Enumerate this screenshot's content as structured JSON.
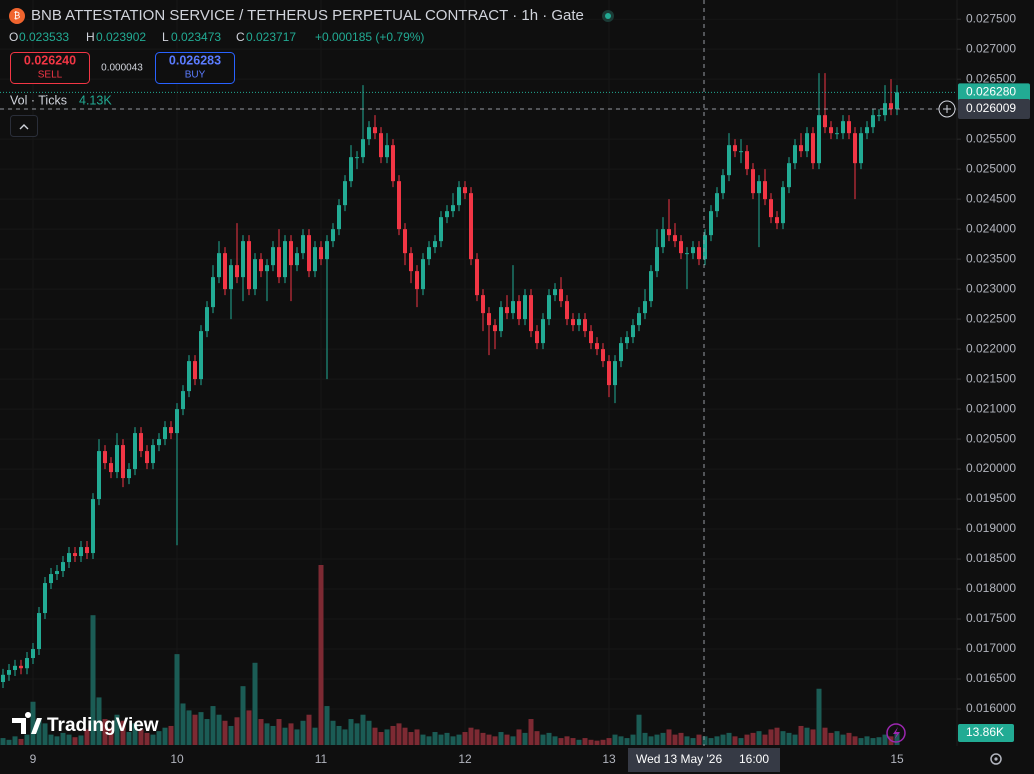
{
  "chart_data": {
    "type": "candlestick",
    "title": "BNB ATTESTATION SERVICE / TETHERUS PERPETUAL CONTRACT · 1h · Gate",
    "legend": {
      "o_key": "O",
      "o": "0.023533",
      "h_key": "H",
      "h": "0.023902",
      "l_key": "L",
      "l": "0.023473",
      "c_key": "C",
      "c": "0.023717",
      "change": "+0.000185 (+0.79%)"
    },
    "sell": {
      "price": "0.026240",
      "label": "SELL"
    },
    "spread": "0.000043",
    "buy": {
      "price": "0.026283",
      "label": "BUY"
    },
    "indicator": {
      "name": "Vol · Ticks",
      "value": "4.13K"
    },
    "watermark": "TradingView",
    "colors": {
      "up": "#22ab94",
      "down": "#f23645",
      "vol_up": "#1b5c55",
      "vol_down": "#7d2a33"
    },
    "categories": [
      null,
      null,
      null,
      null,
      null,
      "9",
      null,
      null,
      null,
      null,
      null,
      null,
      null,
      null,
      null,
      null,
      null,
      null,
      null,
      null,
      null,
      null,
      null,
      null,
      null,
      null,
      null,
      null,
      null,
      "10",
      null,
      null,
      null,
      null,
      null,
      null,
      null,
      null,
      null,
      null,
      null,
      null,
      null,
      null,
      null,
      null,
      null,
      null,
      null,
      null,
      null,
      null,
      null,
      "11",
      null,
      null,
      null,
      null,
      null,
      null,
      null,
      null,
      null,
      null,
      null,
      null,
      null,
      null,
      null,
      null,
      null,
      null,
      null,
      null,
      null,
      null,
      null,
      "12",
      null,
      null,
      null,
      null,
      null,
      null,
      null,
      null,
      null,
      null,
      null,
      null,
      null,
      null,
      null,
      null,
      null,
      null,
      null,
      null,
      null,
      null,
      null,
      "13",
      null,
      null,
      null,
      null,
      null,
      null,
      null,
      null,
      null,
      null,
      null,
      null,
      null,
      null,
      null,
      null,
      null,
      null,
      null,
      null,
      null,
      null,
      null,
      null,
      null,
      null,
      null,
      null,
      null,
      null,
      null,
      null,
      null,
      null,
      null,
      null,
      null,
      null,
      null,
      null,
      null,
      null,
      null,
      null,
      null,
      null,
      null,
      "15"
    ],
    "open": [
      0.01645,
      0.01657,
      0.01665,
      0.01672,
      0.01668,
      0.01685,
      0.017,
      0.0176,
      0.0181,
      0.01825,
      0.0183,
      0.01845,
      0.0186,
      0.01855,
      0.0187,
      0.0186,
      0.0195,
      0.0203,
      0.0201,
      0.01995,
      0.0204,
      0.01985,
      0.02,
      0.0206,
      0.0203,
      0.0201,
      0.0204,
      0.0205,
      0.0207,
      0.0206,
      0.021,
      0.0213,
      0.0218,
      0.0215,
      0.0223,
      0.0227,
      0.0232,
      0.0236,
      0.023,
      0.0234,
      0.0232,
      0.0238,
      0.023,
      0.0235,
      0.0233,
      0.0234,
      0.0237,
      0.0232,
      0.0238,
      0.0234,
      0.0236,
      0.0239,
      0.0233,
      0.0237,
      0.0235,
      0.0238,
      0.024,
      0.0244,
      0.0248,
      0.0252,
      0.0252,
      0.0255,
      0.0257,
      0.0256,
      0.0252,
      0.0254,
      0.0248,
      0.024,
      0.0236,
      0.0233,
      0.023,
      0.0235,
      0.0237,
      0.0238,
      0.0242,
      0.0243,
      0.0244,
      0.0247,
      0.0246,
      0.0235,
      0.0229,
      0.0226,
      0.0224,
      0.0223,
      0.0227,
      0.0226,
      0.0228,
      0.0225,
      0.0229,
      0.0223,
      0.0221,
      0.0225,
      0.0229,
      0.023,
      0.0228,
      0.0225,
      0.0224,
      0.0225,
      0.0223,
      0.0221,
      0.022,
      0.0218,
      0.0214,
      0.0218,
      0.0221,
      0.0222,
      0.0224,
      0.0226,
      0.0228,
      0.0233,
      0.0237,
      0.024,
      0.0239,
      0.0238,
      0.0236,
      0.0236,
      0.0237,
      0.0235,
      0.0239,
      0.0243,
      0.0246,
      0.0249,
      0.0254,
      0.0253,
      0.0253,
      0.025,
      0.0246,
      0.0248,
      0.0245,
      0.0242,
      0.0241,
      0.0247,
      0.0251,
      0.0254,
      0.0253,
      0.0256,
      0.0251,
      0.0259,
      0.0257,
      0.0256,
      0.0256,
      0.0258,
      0.0256,
      0.0251,
      0.0256,
      0.0257,
      0.0259,
      0.0259,
      0.0261,
      0.026
    ],
    "high": [
      0.01667,
      0.01675,
      0.01682,
      0.01682,
      0.01695,
      0.0171,
      0.0177,
      0.0182,
      0.01835,
      0.0184,
      0.01855,
      0.0187,
      0.0187,
      0.0188,
      0.0188,
      0.0196,
      0.0205,
      0.0204,
      0.0202,
      0.0206,
      0.0205,
      0.0201,
      0.0207,
      0.0207,
      0.0204,
      0.0205,
      0.0206,
      0.0208,
      0.0208,
      0.0211,
      0.0214,
      0.0219,
      0.0219,
      0.0224,
      0.0228,
      0.0234,
      0.0238,
      0.0237,
      0.0235,
      0.0241,
      0.0239,
      0.0239,
      0.0236,
      0.0236,
      0.0235,
      0.0238,
      0.024,
      0.0239,
      0.0239,
      0.0237,
      0.024,
      0.024,
      0.0238,
      0.0238,
      0.0239,
      0.0241,
      0.0245,
      0.0249,
      0.0254,
      0.0253,
      0.0264,
      0.0258,
      0.0259,
      0.0257,
      0.0256,
      0.0255,
      0.0249,
      0.0241,
      0.0237,
      0.0234,
      0.0236,
      0.0238,
      0.0239,
      0.0243,
      0.0244,
      0.0246,
      0.0248,
      0.0248,
      0.0247,
      0.0236,
      0.023,
      0.0227,
      0.0225,
      0.0228,
      0.0229,
      0.0234,
      0.0229,
      0.023,
      0.023,
      0.0224,
      0.0226,
      0.023,
      0.0231,
      0.0232,
      0.0229,
      0.0226,
      0.0226,
      0.0226,
      0.0224,
      0.0222,
      0.0221,
      0.0219,
      0.0219,
      0.0222,
      0.0223,
      0.0225,
      0.0227,
      0.023,
      0.0234,
      0.024,
      0.0242,
      0.0245,
      0.0241,
      0.0239,
      0.0237,
      0.0238,
      0.0238,
      0.024,
      0.0244,
      0.0247,
      0.025,
      0.0256,
      0.0255,
      0.0255,
      0.0254,
      0.0251,
      0.0249,
      0.025,
      0.0246,
      0.0243,
      0.0248,
      0.0252,
      0.0255,
      0.0256,
      0.0257,
      0.0257,
      0.0266,
      0.0266,
      0.0258,
      0.0257,
      0.0259,
      0.0259,
      0.0257,
      0.0257,
      0.0258,
      0.026,
      0.026,
      0.0264,
      0.0265,
      0.0264
    ],
    "low": [
      0.01635,
      0.01647,
      0.01655,
      0.01658,
      0.01658,
      0.01675,
      0.0169,
      0.0175,
      0.018,
      0.01815,
      0.0182,
      0.01835,
      0.01845,
      0.01845,
      0.0185,
      0.0185,
      0.0194,
      0.02,
      0.01985,
      0.01985,
      0.0197,
      0.01975,
      0.0199,
      0.0202,
      0.02,
      0.02,
      0.0203,
      0.0204,
      0.0205,
      0.01873,
      0.0209,
      0.0212,
      0.0214,
      0.0214,
      0.0222,
      0.0226,
      0.0231,
      0.0229,
      0.0225,
      0.0231,
      0.0228,
      0.0229,
      0.0229,
      0.0232,
      0.0228,
      0.0233,
      0.0231,
      0.0231,
      0.0228,
      0.0233,
      0.0235,
      0.0232,
      0.0232,
      0.0234,
      0.0215,
      0.0237,
      0.0239,
      0.0243,
      0.0247,
      0.025,
      0.0251,
      0.0254,
      0.0255,
      0.0251,
      0.0251,
      0.0247,
      0.0239,
      0.0234,
      0.0231,
      0.0227,
      0.0229,
      0.0234,
      0.0236,
      0.0237,
      0.0241,
      0.0242,
      0.0243,
      0.0245,
      0.0234,
      0.0228,
      0.0223,
      0.0219,
      0.022,
      0.0222,
      0.0225,
      0.0225,
      0.0224,
      0.0224,
      0.0222,
      0.022,
      0.022,
      0.0224,
      0.0228,
      0.0227,
      0.0224,
      0.0223,
      0.0223,
      0.0222,
      0.022,
      0.0219,
      0.0217,
      0.0212,
      0.0211,
      0.0217,
      0.022,
      0.0221,
      0.0223,
      0.0225,
      0.0227,
      0.0232,
      0.0236,
      0.0238,
      0.0237,
      0.0235,
      0.023,
      0.0235,
      0.0234,
      0.0234,
      0.0238,
      0.0242,
      0.0245,
      0.0248,
      0.0252,
      0.0251,
      0.0249,
      0.0245,
      0.0237,
      0.0244,
      0.0241,
      0.024,
      0.024,
      0.0246,
      0.025,
      0.0252,
      0.0252,
      0.025,
      0.025,
      0.0256,
      0.0255,
      0.0255,
      0.0255,
      0.0255,
      0.0245,
      0.025,
      0.0255,
      0.0256,
      0.0258,
      0.0258,
      0.0259,
      0.0259
    ],
    "close": [
      0.01657,
      0.01665,
      0.01672,
      0.01668,
      0.01685,
      0.017,
      0.0176,
      0.0181,
      0.01825,
      0.0183,
      0.01845,
      0.0186,
      0.01855,
      0.0187,
      0.0186,
      0.0195,
      0.0203,
      0.0201,
      0.01995,
      0.0204,
      0.01985,
      0.02,
      0.0206,
      0.0203,
      0.0201,
      0.0204,
      0.0205,
      0.0207,
      0.0206,
      0.021,
      0.0213,
      0.0218,
      0.0215,
      0.0223,
      0.0227,
      0.0232,
      0.0236,
      0.023,
      0.0234,
      0.0232,
      0.0238,
      0.023,
      0.0235,
      0.0233,
      0.0234,
      0.0237,
      0.0232,
      0.0238,
      0.0234,
      0.0236,
      0.0239,
      0.0233,
      0.0237,
      0.0235,
      0.0238,
      0.024,
      0.0244,
      0.0248,
      0.0252,
      0.0252,
      0.0255,
      0.0257,
      0.0256,
      0.0252,
      0.0254,
      0.0248,
      0.024,
      0.0236,
      0.0233,
      0.023,
      0.0235,
      0.0237,
      0.0238,
      0.0242,
      0.0243,
      0.0244,
      0.0247,
      0.0246,
      0.0235,
      0.0229,
      0.0226,
      0.0224,
      0.0223,
      0.0227,
      0.0226,
      0.0228,
      0.0225,
      0.0229,
      0.0223,
      0.0221,
      0.0225,
      0.0229,
      0.023,
      0.0228,
      0.0225,
      0.0224,
      0.0225,
      0.0223,
      0.0221,
      0.022,
      0.0218,
      0.0214,
      0.0218,
      0.0221,
      0.0222,
      0.0224,
      0.0226,
      0.0228,
      0.0233,
      0.0237,
      0.024,
      0.0239,
      0.0238,
      0.0236,
      0.0236,
      0.0237,
      0.0235,
      0.0239,
      0.0243,
      0.0246,
      0.0249,
      0.0254,
      0.0253,
      0.0253,
      0.025,
      0.0246,
      0.0248,
      0.0245,
      0.0242,
      0.0241,
      0.0247,
      0.0251,
      0.0254,
      0.0253,
      0.0256,
      0.0251,
      0.0259,
      0.0257,
      0.0256,
      0.0256,
      0.0258,
      0.0256,
      0.0251,
      0.0256,
      0.0257,
      0.0259,
      0.0259,
      0.0261,
      0.026,
      0.02628
    ],
    "volume": [
      8,
      6,
      10,
      7,
      12,
      50,
      30,
      25,
      12,
      10,
      14,
      12,
      9,
      11,
      18,
      150,
      55,
      30,
      20,
      35,
      28,
      15,
      25,
      18,
      14,
      12,
      16,
      20,
      22,
      105,
      48,
      40,
      35,
      38,
      30,
      45,
      35,
      28,
      22,
      32,
      68,
      40,
      95,
      30,
      25,
      22,
      30,
      20,
      25,
      18,
      28,
      35,
      20,
      208,
      45,
      28,
      22,
      18,
      30,
      25,
      35,
      28,
      20,
      15,
      18,
      22,
      25,
      20,
      15,
      18,
      12,
      10,
      15,
      12,
      14,
      10,
      12,
      15,
      20,
      18,
      14,
      12,
      10,
      15,
      12,
      10,
      18,
      14,
      30,
      16,
      12,
      14,
      10,
      8,
      10,
      8,
      6,
      8,
      6,
      5,
      6,
      8,
      12,
      10,
      8,
      12,
      35,
      14,
      10,
      12,
      14,
      18,
      12,
      14,
      10,
      8,
      12,
      10,
      8,
      10,
      12,
      14,
      10,
      8,
      12,
      14,
      16,
      12,
      18,
      20,
      16,
      14,
      12,
      22,
      20,
      18,
      65,
      20,
      14,
      16,
      12,
      14,
      10,
      8,
      10,
      8,
      9,
      12,
      10,
      13.86
    ],
    "last_volume_label": "13.86K",
    "last_price_label": "0.026280",
    "ylim": [
      0.0154,
      0.02782
    ],
    "yticks": [
      {
        "value": 0.016,
        "label": "0.016000"
      },
      {
        "value": 0.0165,
        "label": "0.016500"
      },
      {
        "value": 0.017,
        "label": "0.017000"
      },
      {
        "value": 0.0175,
        "label": "0.017500"
      },
      {
        "value": 0.018,
        "label": "0.018000"
      },
      {
        "value": 0.0185,
        "label": "0.018500"
      },
      {
        "value": 0.019,
        "label": "0.019000"
      },
      {
        "value": 0.0195,
        "label": "0.019500"
      },
      {
        "value": 0.02,
        "label": "0.020000"
      },
      {
        "value": 0.0205,
        "label": "0.020500"
      },
      {
        "value": 0.021,
        "label": "0.021000"
      },
      {
        "value": 0.0215,
        "label": "0.021500"
      },
      {
        "value": 0.022,
        "label": "0.022000"
      },
      {
        "value": 0.0225,
        "label": "0.022500"
      },
      {
        "value": 0.023,
        "label": "0.023000"
      },
      {
        "value": 0.0235,
        "label": "0.023500"
      },
      {
        "value": 0.024,
        "label": "0.024000"
      },
      {
        "value": 0.0245,
        "label": "0.024500"
      },
      {
        "value": 0.025,
        "label": "0.025000"
      },
      {
        "value": 0.0255,
        "label": "0.025500"
      },
      {
        "value": 0.026,
        "label": "0.026000"
      },
      {
        "value": 0.0265,
        "label": "0.026500"
      },
      {
        "value": 0.027,
        "label": "0.027000"
      },
      {
        "value": 0.0275,
        "label": "0.027500"
      }
    ],
    "grid": true,
    "crosshair": {
      "date_label": "Wed 13 May '26",
      "time_label": "16:00",
      "price_label": "0.026009"
    }
  }
}
